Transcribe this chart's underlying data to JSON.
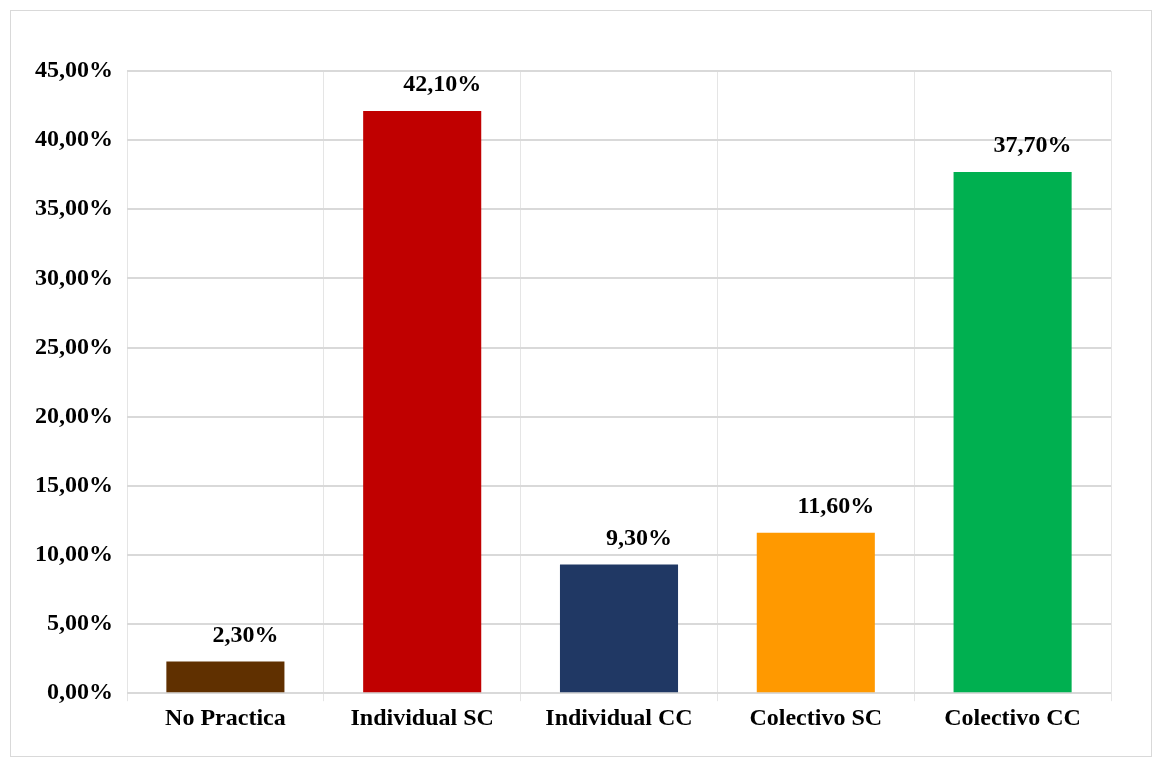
{
  "chart_data": {
    "type": "bar",
    "categories": [
      "No Practica",
      "Individual SC",
      "Individual CC",
      "Colectivo SC",
      "Colectivo CC"
    ],
    "values": [
      2.3,
      42.1,
      9.3,
      11.6,
      37.7
    ],
    "colors": [
      "#603000",
      "#c00000",
      "#203864",
      "#ff9900",
      "#00b050"
    ],
    "value_labels": [
      "2,30%",
      "42,10%",
      "9,30%",
      "11,60%",
      "37,70%"
    ],
    "ylim": [
      0,
      45
    ],
    "yticks": [
      {
        "value": 0,
        "label": "0,00%"
      },
      {
        "value": 5,
        "label": "5,00%"
      },
      {
        "value": 10,
        "label": "10,00%"
      },
      {
        "value": 15,
        "label": "15,00%"
      },
      {
        "value": 20,
        "label": "20,00%"
      },
      {
        "value": 25,
        "label": "25,00%"
      },
      {
        "value": 30,
        "label": "30,00%"
      },
      {
        "value": 35,
        "label": "35,00%"
      },
      {
        "value": 40,
        "label": "40,00%"
      },
      {
        "value": 45,
        "label": "45,00%"
      }
    ],
    "grid": true,
    "legend": false
  }
}
